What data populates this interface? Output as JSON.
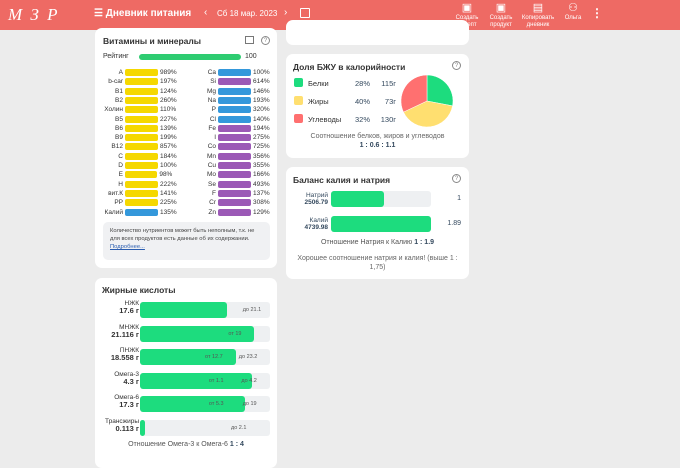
{
  "header": {
    "logo": "М З Р",
    "title": "Дневник питания",
    "date": "Сб 18 мар. 2023",
    "buttons": [
      {
        "label": "Создать рецепт",
        "icon": "recipe-icon"
      },
      {
        "label": "Создать продукт",
        "icon": "product-icon"
      },
      {
        "label": "Копировать дневник",
        "icon": "copy-icon"
      },
      {
        "label": "Ольга",
        "icon": "user-icon"
      }
    ]
  },
  "vitamins": {
    "title": "Витамины и минералы",
    "rating_label": "Рейтинг",
    "rating_value": "100",
    "rating": 100,
    "left": [
      [
        "A",
        "989%",
        "#f5d800",
        1
      ],
      [
        "b-car",
        "197%",
        "#f5d800",
        1
      ],
      [
        "B1",
        "124%",
        "#f5d800",
        1
      ],
      [
        "B2",
        "260%",
        "#f5d800",
        1
      ],
      [
        "Холин",
        "110%",
        "#f5d800",
        1
      ],
      [
        "B5",
        "227%",
        "#f5d800",
        1
      ],
      [
        "B6",
        "139%",
        "#f5d800",
        1
      ],
      [
        "B9",
        "199%",
        "#f5d800",
        1
      ],
      [
        "B12",
        "857%",
        "#f5d800",
        1
      ],
      [
        "C",
        "184%",
        "#f5d800",
        1
      ],
      [
        "D",
        "100%",
        "#f5d800",
        1
      ],
      [
        "E",
        "98%",
        "#f5d800",
        0.98
      ],
      [
        "H",
        "222%",
        "#f5d800",
        1
      ],
      [
        "вит.К",
        "141%",
        "#f5d800",
        1
      ],
      [
        "PP",
        "225%",
        "#f5d800",
        1
      ],
      [
        "Калий",
        "135%",
        "#3498db",
        1
      ]
    ],
    "right": [
      [
        "Ca",
        "100%",
        "#3498db",
        1
      ],
      [
        "Si",
        "614%",
        "#9b59b6",
        1
      ],
      [
        "Mg",
        "146%",
        "#3498db",
        1
      ],
      [
        "Na",
        "193%",
        "#3498db",
        1
      ],
      [
        "P",
        "320%",
        "#3498db",
        1
      ],
      [
        "Cl",
        "140%",
        "#3498db",
        1
      ],
      [
        "Fe",
        "194%",
        "#9b59b6",
        1
      ],
      [
        "I",
        "275%",
        "#9b59b6",
        1
      ],
      [
        "Co",
        "725%",
        "#9b59b6",
        1
      ],
      [
        "Mn",
        "356%",
        "#9b59b6",
        1
      ],
      [
        "Cu",
        "355%",
        "#9b59b6",
        1
      ],
      [
        "Mo",
        "166%",
        "#9b59b6",
        1
      ],
      [
        "Se",
        "493%",
        "#9b59b6",
        1
      ],
      [
        "F",
        "137%",
        "#9b59b6",
        1
      ],
      [
        "Cr",
        "308%",
        "#9b59b6",
        1
      ],
      [
        "Zn",
        "129%",
        "#9b59b6",
        1
      ]
    ],
    "note": "Количество нутриентов может быть неполным, т.к. не для всех продуктов есть данные об их содержании.",
    "note_link": "Подробнее..."
  },
  "fatty": {
    "title": "Жирные кислоты",
    "rows": [
      {
        "name": "НЖК",
        "amount": "17.6 г",
        "fill": 0.67,
        "marks": [
          [
            "до 21.1",
            0.79
          ]
        ]
      },
      {
        "name": "МНЖК",
        "amount": "21.116 г",
        "fill": 0.88,
        "marks": [
          [
            "от 19",
            0.68
          ]
        ]
      },
      {
        "name": "ПНЖК",
        "amount": "18.558 г",
        "fill": 0.74,
        "marks": [
          [
            "от 12.7",
            0.5
          ],
          [
            "до 23.2",
            0.76
          ]
        ]
      },
      {
        "name": "Омега-3",
        "amount": "4.3 г",
        "fill": 0.86,
        "marks": [
          [
            "от 1.1",
            0.53
          ],
          [
            "до 4.2",
            0.78
          ]
        ]
      },
      {
        "name": "Омега-6",
        "amount": "17.3 г",
        "fill": 0.81,
        "marks": [
          [
            "от 5.3",
            0.53
          ],
          [
            "до 19",
            0.79
          ]
        ]
      },
      {
        "name": "Трансжиры",
        "amount": "0.113 г",
        "fill": 0.04,
        "marks": [
          [
            "до 2.1",
            0.7
          ]
        ]
      }
    ],
    "ratio_label": "Отношение Омега-3 к Омега-6",
    "ratio": "1 : 4"
  },
  "bju": {
    "title": "Доля БЖУ в калорийности",
    "items": [
      {
        "name": "Белки",
        "pct": "28%",
        "g": "115г",
        "color": "#1ddc7e",
        "value": 28
      },
      {
        "name": "Жиры",
        "pct": "40%",
        "g": "73г",
        "color": "#ffdf70",
        "value": 40
      },
      {
        "name": "Углеводы",
        "pct": "32%",
        "g": "130г",
        "color": "#ff7070",
        "value": 32
      }
    ],
    "ratio_label": "Соотношение белков, жиров и углеводов",
    "ratio": "1 : 0.6 : 1.1"
  },
  "balance": {
    "title": "Баланс калия и натрия",
    "rows": [
      {
        "name": "Натрий",
        "value": "2506.79",
        "ratio": "1",
        "fill": 0.53
      },
      {
        "name": "Калий",
        "value": "4739.98",
        "ratio": "1.89",
        "fill": 1
      }
    ],
    "ratio_label": "Отношение Натрия к Калию",
    "ratio": "1 : 1.9",
    "comment": "Хорошее соотношение натрия и калия! (выше 1 : 1,75)"
  }
}
